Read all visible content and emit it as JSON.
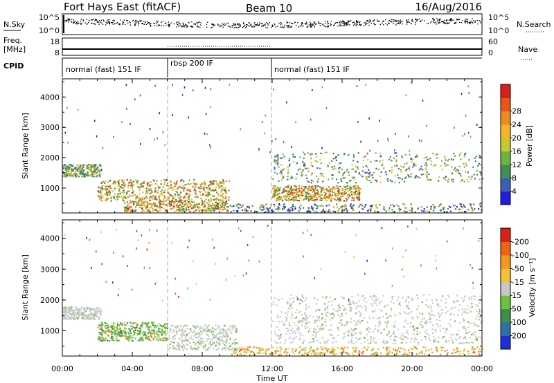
{
  "header": {
    "station": "Fort Hays East (fitACF)",
    "beam": "Beam 10",
    "date": "16/Aug/2016"
  },
  "panels": {
    "nsky_label": "N.Sky",
    "nsky_ticks": [
      "10^5",
      "10^0"
    ],
    "nsearch_label": "N.Search",
    "nsearch_ticks": [
      "10^5",
      "10^0"
    ],
    "freq_label_1": "Freq.",
    "freq_label_2": "[MHz]",
    "freq_ticks": [
      "18",
      "8"
    ],
    "nave_label": "Nave",
    "nave_ticks": [
      "60",
      "0"
    ],
    "cpid_label": "CPID",
    "cpid_segments": [
      {
        "name": "normal (fast) 151 IF",
        "start_hour": 0,
        "end_hour": 6
      },
      {
        "name": "rbsp 200 IF",
        "start_hour": 6,
        "end_hour": 12
      },
      {
        "name": "normal (fast) 151 IF",
        "start_hour": 12,
        "end_hour": 24
      }
    ]
  },
  "chart_data": [
    {
      "type": "heatmap",
      "ylabel": "Slant Range [km]",
      "ylim": [
        180,
        4600
      ],
      "yticks": [
        1000,
        2000,
        3000,
        4000
      ],
      "xlim": [
        0,
        24
      ],
      "colorbar": {
        "label": "Power [dB]",
        "ticks": [
          "4",
          "8",
          "12",
          "16",
          "20",
          "24",
          "28"
        ],
        "colors": [
          "#1e1ee0",
          "#3b5fb5",
          "#3f8f55",
          "#6fb33f",
          "#c6c82d",
          "#f5b52a",
          "#f08a1c",
          "#e8551a",
          "#d8201a"
        ]
      },
      "features": [
        {
          "hours": [
            0,
            2.2
          ],
          "range_km": [
            1400,
            1800
          ],
          "level": "moderate"
        },
        {
          "hours": [
            2.0,
            9.5
          ],
          "range_km": [
            600,
            1300
          ],
          "level": "strong"
        },
        {
          "hours": [
            3.5,
            9.5
          ],
          "range_km": [
            250,
            600
          ],
          "level": "strong"
        },
        {
          "hours": [
            9.5,
            24
          ],
          "range_km": [
            180,
            500
          ],
          "level": "weak"
        },
        {
          "hours": [
            12,
            17
          ],
          "range_km": [
            600,
            1100
          ],
          "level": "strong"
        },
        {
          "hours": [
            12,
            24
          ],
          "range_km": [
            1200,
            2200
          ],
          "level": "moderate"
        }
      ]
    },
    {
      "type": "heatmap",
      "ylabel": "Slant Range [km]",
      "ylim": [
        180,
        4600
      ],
      "yticks": [
        1000,
        2000,
        3000,
        4000
      ],
      "xlim": [
        0,
        24
      ],
      "colorbar": {
        "label": "Velocity [m s⁻¹]",
        "ticks": [
          "200",
          "100",
          "50",
          "15",
          "-15",
          "-50",
          "-100",
          "-200"
        ],
        "colors": [
          "#1e2fd8",
          "#2f6fa8",
          "#3e8f4a",
          "#6cc23c",
          "#c8c8c8",
          "#f5c238",
          "#f59620",
          "#ee6314",
          "#dc2014"
        ]
      },
      "features": [
        {
          "hours": [
            0,
            2.2
          ],
          "range_km": [
            1400,
            1800
          ],
          "velocity": "ground scatter"
        },
        {
          "hours": [
            2.0,
            6.0
          ],
          "range_km": [
            700,
            1300
          ],
          "velocity": "positive"
        },
        {
          "hours": [
            6.0,
            10.0
          ],
          "range_km": [
            400,
            1200
          ],
          "velocity": "ground scatter"
        },
        {
          "hours": [
            9.5,
            24
          ],
          "range_km": [
            180,
            500
          ],
          "velocity": "negative"
        },
        {
          "hours": [
            12,
            24
          ],
          "range_km": [
            600,
            2200
          ],
          "velocity": "ground scatter"
        }
      ]
    }
  ],
  "xaxis": {
    "label": "Time UT",
    "ticks": [
      "00:00",
      "04:00",
      "08:00",
      "12:00",
      "16:00",
      "20:00",
      "00:00"
    ]
  }
}
